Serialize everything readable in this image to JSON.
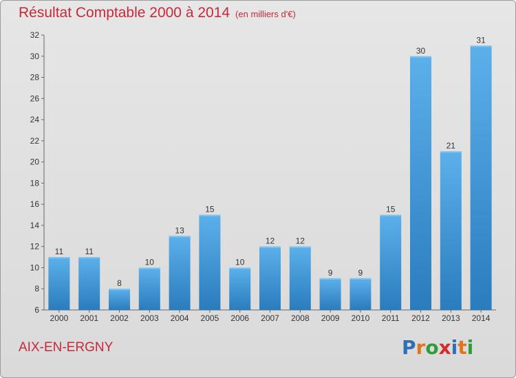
{
  "chart_data": {
    "type": "bar",
    "title": "Résultat Comptable 2000 à 2014",
    "subtitle": "(en milliers d'€)",
    "categories": [
      "2000",
      "2001",
      "2002",
      "2003",
      "2004",
      "2005",
      "2006",
      "2007",
      "2008",
      "2009",
      "2010",
      "2011",
      "2012",
      "2013",
      "2014"
    ],
    "values": [
      11,
      11,
      8,
      10,
      13,
      15,
      10,
      12,
      12,
      9,
      9,
      15,
      30,
      21,
      31
    ],
    "ylim": [
      6,
      32
    ],
    "yticks": [
      6,
      8,
      10,
      12,
      14,
      16,
      18,
      20,
      22,
      24,
      26,
      28,
      30,
      32
    ],
    "xlabel": "",
    "ylabel": "",
    "grid": false
  },
  "footer": {
    "town": "AIX-EN-ERGNY",
    "logo_letters": [
      "P",
      "r",
      "o",
      "x",
      "i",
      "t",
      "i"
    ],
    "logo_colors": [
      "#2f6fb5",
      "#e0751c",
      "#2f9e3a",
      "#d52b2b",
      "#2f6fb5",
      "#e0751c",
      "#2f9e3a"
    ]
  },
  "colors": {
    "bar_light": "#5aaee8",
    "bar_dark": "#2a7fc0",
    "title": "#c8283a",
    "axis": "#555555"
  }
}
